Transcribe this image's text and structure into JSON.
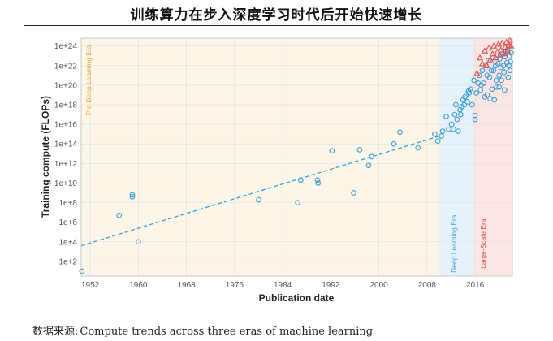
{
  "header": {
    "title": "训练算力在步入深度学习时代后开始快速增长"
  },
  "source": {
    "label": "数据来源:",
    "text": "Compute trends across three eras of machine learning"
  },
  "chart_data": {
    "type": "scatter",
    "title": "训练算力在步入深度学习时代后开始快速增长",
    "xlabel": "Publication date",
    "ylabel": "Training compute (FLOPs)",
    "xlim": [
      1950.5,
      2022.2
    ],
    "ylim": [
      0.5,
      24.8
    ],
    "y_scale": "log10",
    "x_ticks": [
      1952,
      1960,
      1968,
      1976,
      1984,
      1992,
      2000,
      2008,
      2016
    ],
    "y_ticks": [
      {
        "exp": 2,
        "label": "1e+2"
      },
      {
        "exp": 4,
        "label": "1e+4"
      },
      {
        "exp": 6,
        "label": "1e+6"
      },
      {
        "exp": 8,
        "label": "1e+8"
      },
      {
        "exp": 10,
        "label": "1e+10"
      },
      {
        "exp": 12,
        "label": "1e+12"
      },
      {
        "exp": 14,
        "label": "1e+14"
      },
      {
        "exp": 16,
        "label": "1e+16"
      },
      {
        "exp": 18,
        "label": "1e+18"
      },
      {
        "exp": 20,
        "label": "1e+20"
      },
      {
        "exp": 22,
        "label": "1e+22"
      },
      {
        "exp": 24,
        "label": "1e+24"
      }
    ],
    "grid": true,
    "eras": [
      {
        "name": "Pre Deep Learning Era",
        "start": 1950.5,
        "end": 2010.0,
        "color": "#fbf6e8",
        "label_color": "#e8a23c"
      },
      {
        "name": "Deep Learning Era",
        "start": 2010.0,
        "end": 2015.7,
        "color": "#e6f2fa",
        "label_color": "#3b9ed6"
      },
      {
        "name": "Large-Scale Era",
        "start": 2015.7,
        "end": 2022.2,
        "color": "#fbe6e4",
        "label_color": "#e0504a"
      }
    ],
    "trend_lines": [
      {
        "name": "trend",
        "x": [
          1950.5,
          2010.0
        ],
        "y_exp": [
          3.6,
          14.8
        ],
        "color": "#3b9ed6"
      }
    ],
    "series": [
      {
        "marker": "circle",
        "color": "#3b9ed6",
        "x": [
          1950.6,
          1956.8,
          1959.0,
          1959.0,
          1960.0,
          1980.0,
          1986.5,
          1987.0,
          1989.8,
          1989.9,
          1992.2,
          1995.8,
          1996.8,
          1998.3,
          1998.8,
          2002.5,
          2003.5,
          2006.5,
          2009.3,
          2009.8,
          2010.4,
          2010.6,
          2011.2,
          2011.6,
          2012.1,
          2012.4,
          2012.6,
          2012.8,
          2013.0,
          2013.2,
          2013.5,
          2013.6,
          2013.8,
          2014.0,
          2014.2,
          2014.3,
          2014.5,
          2014.7,
          2014.9,
          2015.0,
          2015.2,
          2015.5,
          2015.8,
          2016.0,
          2016.0,
          2016.2,
          2016.5,
          2016.7,
          2016.9,
          2017.0,
          2017.2,
          2017.4,
          2017.6,
          2017.8,
          2018.0,
          2018.0,
          2018.2,
          2018.4,
          2018.5,
          2018.7,
          2018.8,
          2019.0,
          2019.1,
          2019.2,
          2019.4,
          2019.5,
          2019.6,
          2019.7,
          2019.8,
          2020.0,
          2020.0,
          2020.1,
          2020.2,
          2020.3,
          2020.4,
          2020.6,
          2020.7,
          2020.8,
          2020.9,
          2021.0,
          2021.1,
          2021.2,
          2021.3,
          2021.4,
          2021.5,
          2021.6,
          2021.7,
          2021.8,
          2021.9,
          2022.0
        ],
        "y_exp": [
          1.0,
          6.7,
          8.6,
          8.8,
          4.0,
          8.3,
          8.0,
          10.3,
          10.3,
          10.0,
          13.3,
          9.0,
          13.4,
          11.8,
          12.7,
          14.0,
          15.2,
          13.6,
          15.0,
          14.3,
          14.8,
          15.3,
          16.8,
          15.5,
          16.0,
          15.5,
          17.0,
          18.0,
          16.5,
          15.3,
          17.5,
          17.0,
          17.8,
          18.5,
          18.0,
          18.8,
          19.0,
          18.3,
          19.4,
          19.2,
          19.6,
          18.0,
          20.5,
          16.5,
          16.9,
          19.2,
          20.2,
          21.0,
          19.5,
          20.0,
          21.5,
          20.2,
          18.8,
          22.0,
          21.0,
          19.0,
          22.5,
          20.8,
          18.6,
          21.5,
          19.6,
          22.8,
          21.5,
          18.5,
          22.0,
          20.5,
          19.8,
          23.0,
          22.2,
          21.0,
          19.8,
          22.7,
          23.0,
          21.8,
          20.5,
          23.2,
          22.0,
          21.3,
          19.5,
          22.9,
          23.4,
          21.7,
          22.3,
          23.6,
          20.8,
          22.0,
          23.0,
          21.5,
          22.4,
          23.3
        ]
      },
      {
        "marker": "triangle",
        "color": "#e0504a",
        "x": [
          2016.3,
          2016.8,
          2017.2,
          2017.6,
          2017.9,
          2018.3,
          2018.5,
          2018.9,
          2019.1,
          2019.4,
          2019.7,
          2019.9,
          2020.1,
          2020.3,
          2020.5,
          2020.8,
          2021.0,
          2021.2,
          2021.4,
          2021.6,
          2021.8,
          2022.0
        ],
        "y_exp": [
          21.2,
          22.8,
          22.2,
          23.5,
          22.0,
          23.8,
          22.6,
          23.2,
          24.0,
          22.8,
          23.4,
          24.2,
          23.0,
          23.6,
          24.3,
          23.2,
          23.9,
          24.4,
          23.5,
          24.1,
          24.6,
          24.0
        ]
      }
    ]
  }
}
